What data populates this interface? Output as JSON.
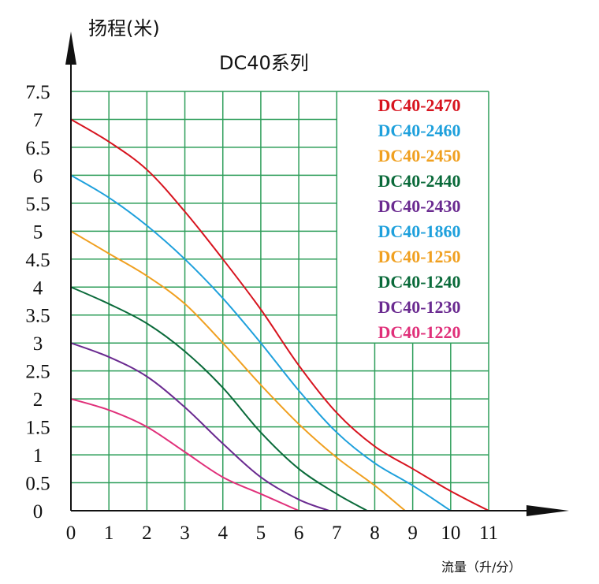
{
  "chart_data": {
    "type": "line",
    "title": "DC40系列",
    "ylabel": "扬程(米)",
    "xlabel": "流量（升/分）",
    "xlim": [
      0,
      11
    ],
    "ylim": [
      0,
      7.5
    ],
    "x_ticks": [
      "0",
      "1",
      "2",
      "3",
      "4",
      "5",
      "6",
      "7",
      "8",
      "9",
      "10",
      "11"
    ],
    "y_ticks": [
      "0",
      "0.5",
      "1",
      "1.5",
      "2",
      "2.5",
      "3",
      "3.5",
      "4",
      "4.5",
      "5",
      "5.5",
      "6",
      "6.5",
      "7",
      "7.5"
    ],
    "grid": true,
    "grid_color": "#2e9e5a",
    "legend_position": "top-right",
    "legend": [
      {
        "label": "DC40-2470",
        "color": "#d7141f"
      },
      {
        "label": "DC40-2460",
        "color": "#1ea0dc"
      },
      {
        "label": "DC40-2450",
        "color": "#f0a020"
      },
      {
        "label": "DC40-2440",
        "color": "#0a6a3a"
      },
      {
        "label": "DC40-2430",
        "color": "#6a2a90"
      },
      {
        "label": "DC40-1860",
        "color": "#1ea0dc"
      },
      {
        "label": "DC40-1250",
        "color": "#f0a020"
      },
      {
        "label": "DC40-1240",
        "color": "#0a6a3a"
      },
      {
        "label": "DC40-1230",
        "color": "#6a2a90"
      },
      {
        "label": "DC40-1220",
        "color": "#e0307a"
      }
    ],
    "series": [
      {
        "name": "DC40-2470",
        "color": "#d7141f",
        "x": [
          0,
          1,
          2,
          3,
          4,
          5,
          6,
          7,
          8,
          9,
          10,
          11
        ],
        "y": [
          7,
          6.6,
          6.1,
          5.35,
          4.5,
          3.6,
          2.6,
          1.75,
          1.15,
          0.75,
          0.35,
          0
        ]
      },
      {
        "name": "DC40-2460",
        "color": "#1ea0dc",
        "x": [
          0,
          1,
          2,
          3,
          4,
          5,
          6,
          7,
          8,
          9,
          10
        ],
        "y": [
          6,
          5.6,
          5.1,
          4.5,
          3.8,
          3.0,
          2.15,
          1.4,
          0.85,
          0.45,
          0
        ]
      },
      {
        "name": "DC40-2450",
        "color": "#f0a020",
        "x": [
          0,
          1,
          2,
          3,
          4,
          5,
          6,
          7,
          8,
          8.8
        ],
        "y": [
          5,
          4.6,
          4.2,
          3.7,
          3.0,
          2.25,
          1.55,
          0.95,
          0.45,
          0
        ]
      },
      {
        "name": "DC40-2440",
        "color": "#0a6a3a",
        "x": [
          0,
          1,
          2,
          3,
          4,
          5,
          6,
          7,
          7.8
        ],
        "y": [
          4,
          3.7,
          3.35,
          2.85,
          2.2,
          1.4,
          0.75,
          0.3,
          0
        ]
      },
      {
        "name": "DC40-2430",
        "color": "#6a2a90",
        "x": [
          0,
          1,
          2,
          3,
          4,
          5,
          6,
          6.8
        ],
        "y": [
          3,
          2.75,
          2.4,
          1.85,
          1.2,
          0.6,
          0.2,
          0
        ]
      },
      {
        "name": "DC40-1220",
        "color": "#e0307a",
        "x": [
          0,
          1,
          2,
          3,
          4,
          5,
          6
        ],
        "y": [
          2,
          1.8,
          1.5,
          1.05,
          0.6,
          0.3,
          0
        ]
      }
    ]
  }
}
